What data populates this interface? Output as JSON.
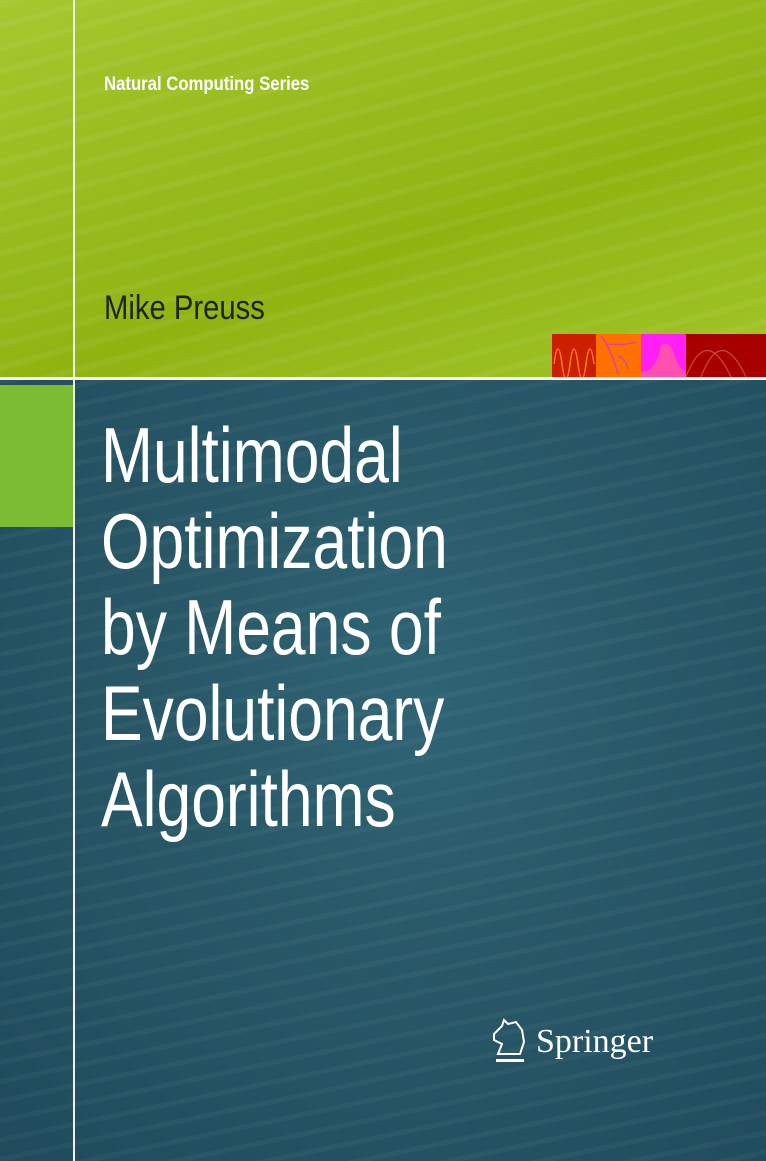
{
  "series": "Natural Computing Series",
  "author": "Mike Preuss",
  "title_lines": [
    "Multimodal",
    "Optimization",
    "by Means of",
    "Evolutionary",
    "Algorithms"
  ],
  "publisher": "Springer",
  "publisher_logo_icon": "knight-horse-icon",
  "colors": {
    "top_green": "#96ba1c",
    "bottom_teal": "#285566",
    "accent_green": "#7cbc34",
    "strip": [
      "#cc1f00",
      "#ff7000",
      "#ff1ff4",
      "#a80000"
    ]
  }
}
